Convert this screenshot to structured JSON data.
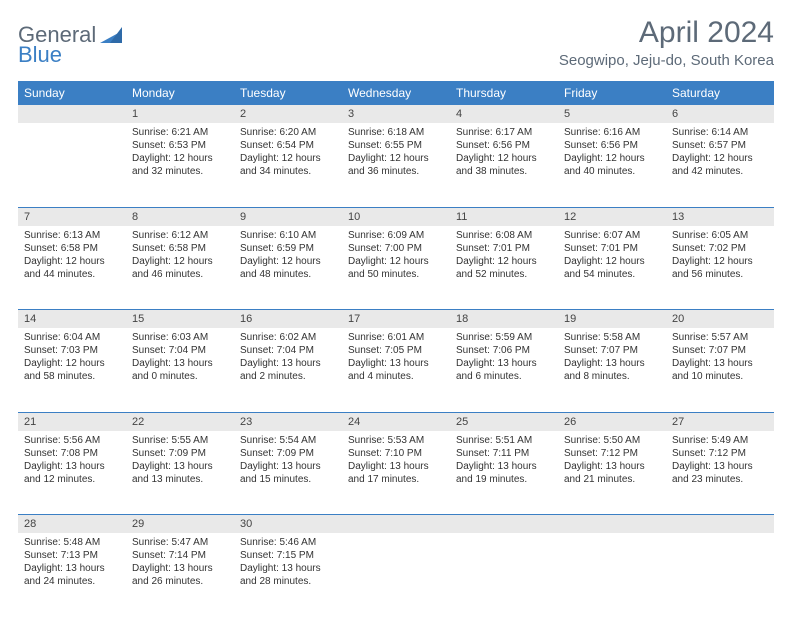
{
  "logo": {
    "text_gray": "General",
    "text_blue": "Blue"
  },
  "title": "April 2024",
  "location": "Seogwipo, Jeju-do, South Korea",
  "colors": {
    "header_bg": "#3b7fc4",
    "daynum_bg": "#e9e9e9",
    "text_gray": "#5d6a78"
  },
  "weekdays": [
    "Sunday",
    "Monday",
    "Tuesday",
    "Wednesday",
    "Thursday",
    "Friday",
    "Saturday"
  ],
  "weeks": [
    [
      {
        "n": "",
        "sr": "",
        "ss": "",
        "dl": ""
      },
      {
        "n": "1",
        "sr": "Sunrise: 6:21 AM",
        "ss": "Sunset: 6:53 PM",
        "dl": "Daylight: 12 hours and 32 minutes."
      },
      {
        "n": "2",
        "sr": "Sunrise: 6:20 AM",
        "ss": "Sunset: 6:54 PM",
        "dl": "Daylight: 12 hours and 34 minutes."
      },
      {
        "n": "3",
        "sr": "Sunrise: 6:18 AM",
        "ss": "Sunset: 6:55 PM",
        "dl": "Daylight: 12 hours and 36 minutes."
      },
      {
        "n": "4",
        "sr": "Sunrise: 6:17 AM",
        "ss": "Sunset: 6:56 PM",
        "dl": "Daylight: 12 hours and 38 minutes."
      },
      {
        "n": "5",
        "sr": "Sunrise: 6:16 AM",
        "ss": "Sunset: 6:56 PM",
        "dl": "Daylight: 12 hours and 40 minutes."
      },
      {
        "n": "6",
        "sr": "Sunrise: 6:14 AM",
        "ss": "Sunset: 6:57 PM",
        "dl": "Daylight: 12 hours and 42 minutes."
      }
    ],
    [
      {
        "n": "7",
        "sr": "Sunrise: 6:13 AM",
        "ss": "Sunset: 6:58 PM",
        "dl": "Daylight: 12 hours and 44 minutes."
      },
      {
        "n": "8",
        "sr": "Sunrise: 6:12 AM",
        "ss": "Sunset: 6:58 PM",
        "dl": "Daylight: 12 hours and 46 minutes."
      },
      {
        "n": "9",
        "sr": "Sunrise: 6:10 AM",
        "ss": "Sunset: 6:59 PM",
        "dl": "Daylight: 12 hours and 48 minutes."
      },
      {
        "n": "10",
        "sr": "Sunrise: 6:09 AM",
        "ss": "Sunset: 7:00 PM",
        "dl": "Daylight: 12 hours and 50 minutes."
      },
      {
        "n": "11",
        "sr": "Sunrise: 6:08 AM",
        "ss": "Sunset: 7:01 PM",
        "dl": "Daylight: 12 hours and 52 minutes."
      },
      {
        "n": "12",
        "sr": "Sunrise: 6:07 AM",
        "ss": "Sunset: 7:01 PM",
        "dl": "Daylight: 12 hours and 54 minutes."
      },
      {
        "n": "13",
        "sr": "Sunrise: 6:05 AM",
        "ss": "Sunset: 7:02 PM",
        "dl": "Daylight: 12 hours and 56 minutes."
      }
    ],
    [
      {
        "n": "14",
        "sr": "Sunrise: 6:04 AM",
        "ss": "Sunset: 7:03 PM",
        "dl": "Daylight: 12 hours and 58 minutes."
      },
      {
        "n": "15",
        "sr": "Sunrise: 6:03 AM",
        "ss": "Sunset: 7:04 PM",
        "dl": "Daylight: 13 hours and 0 minutes."
      },
      {
        "n": "16",
        "sr": "Sunrise: 6:02 AM",
        "ss": "Sunset: 7:04 PM",
        "dl": "Daylight: 13 hours and 2 minutes."
      },
      {
        "n": "17",
        "sr": "Sunrise: 6:01 AM",
        "ss": "Sunset: 7:05 PM",
        "dl": "Daylight: 13 hours and 4 minutes."
      },
      {
        "n": "18",
        "sr": "Sunrise: 5:59 AM",
        "ss": "Sunset: 7:06 PM",
        "dl": "Daylight: 13 hours and 6 minutes."
      },
      {
        "n": "19",
        "sr": "Sunrise: 5:58 AM",
        "ss": "Sunset: 7:07 PM",
        "dl": "Daylight: 13 hours and 8 minutes."
      },
      {
        "n": "20",
        "sr": "Sunrise: 5:57 AM",
        "ss": "Sunset: 7:07 PM",
        "dl": "Daylight: 13 hours and 10 minutes."
      }
    ],
    [
      {
        "n": "21",
        "sr": "Sunrise: 5:56 AM",
        "ss": "Sunset: 7:08 PM",
        "dl": "Daylight: 13 hours and 12 minutes."
      },
      {
        "n": "22",
        "sr": "Sunrise: 5:55 AM",
        "ss": "Sunset: 7:09 PM",
        "dl": "Daylight: 13 hours and 13 minutes."
      },
      {
        "n": "23",
        "sr": "Sunrise: 5:54 AM",
        "ss": "Sunset: 7:09 PM",
        "dl": "Daylight: 13 hours and 15 minutes."
      },
      {
        "n": "24",
        "sr": "Sunrise: 5:53 AM",
        "ss": "Sunset: 7:10 PM",
        "dl": "Daylight: 13 hours and 17 minutes."
      },
      {
        "n": "25",
        "sr": "Sunrise: 5:51 AM",
        "ss": "Sunset: 7:11 PM",
        "dl": "Daylight: 13 hours and 19 minutes."
      },
      {
        "n": "26",
        "sr": "Sunrise: 5:50 AM",
        "ss": "Sunset: 7:12 PM",
        "dl": "Daylight: 13 hours and 21 minutes."
      },
      {
        "n": "27",
        "sr": "Sunrise: 5:49 AM",
        "ss": "Sunset: 7:12 PM",
        "dl": "Daylight: 13 hours and 23 minutes."
      }
    ],
    [
      {
        "n": "28",
        "sr": "Sunrise: 5:48 AM",
        "ss": "Sunset: 7:13 PM",
        "dl": "Daylight: 13 hours and 24 minutes."
      },
      {
        "n": "29",
        "sr": "Sunrise: 5:47 AM",
        "ss": "Sunset: 7:14 PM",
        "dl": "Daylight: 13 hours and 26 minutes."
      },
      {
        "n": "30",
        "sr": "Sunrise: 5:46 AM",
        "ss": "Sunset: 7:15 PM",
        "dl": "Daylight: 13 hours and 28 minutes."
      },
      {
        "n": "",
        "sr": "",
        "ss": "",
        "dl": ""
      },
      {
        "n": "",
        "sr": "",
        "ss": "",
        "dl": ""
      },
      {
        "n": "",
        "sr": "",
        "ss": "",
        "dl": ""
      },
      {
        "n": "",
        "sr": "",
        "ss": "",
        "dl": ""
      }
    ]
  ]
}
